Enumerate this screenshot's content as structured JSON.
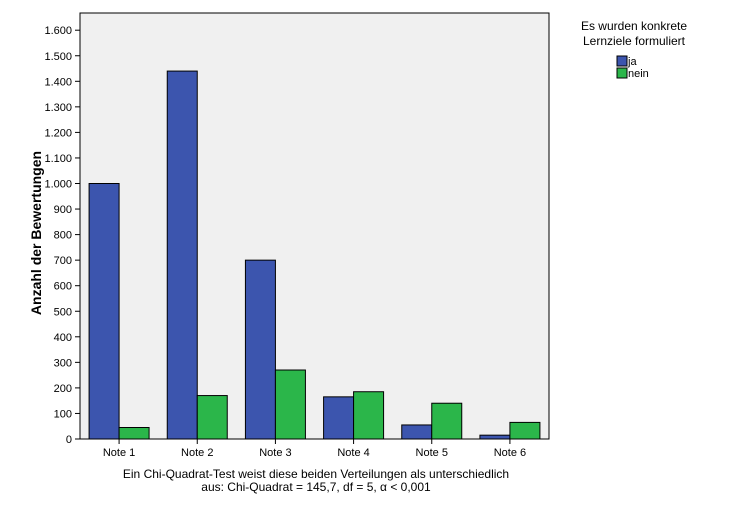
{
  "chart_data": {
    "type": "bar",
    "categories": [
      "Note 1",
      "Note 2",
      "Note 3",
      "Note 4",
      "Note 5",
      "Note 6"
    ],
    "series": [
      {
        "name": "ja",
        "values": [
          1000,
          1440,
          700,
          165,
          55,
          15
        ],
        "color": "#3c55ae"
      },
      {
        "name": "nein",
        "values": [
          45,
          170,
          270,
          185,
          140,
          65
        ],
        "color": "#2bb64a"
      }
    ],
    "ylabel": "Anzahl der Bewertungen",
    "ylim": [
      0,
      1700
    ],
    "yticks": [
      0,
      100,
      200,
      300,
      400,
      500,
      600,
      700,
      800,
      900,
      1000,
      1100,
      1200,
      1300,
      1400,
      1500,
      1600
    ],
    "ytick_labels": [
      "0",
      "100",
      "200",
      "300",
      "400",
      "500",
      "600",
      "700",
      "800",
      "900",
      "1.000",
      "1.100",
      "1.200",
      "1.300",
      "1.400",
      "1.500",
      "1.600"
    ],
    "legend": {
      "title_line1": "Es wurden konkrete",
      "title_line2": "Lernziele formuliert",
      "position": "top-right"
    },
    "grid": false,
    "plot_background": "#f0f0f0",
    "footnote_line1": "Ein Chi-Quadrat-Test weist diese beiden Verteilungen als unterschiedlich",
    "footnote_line2": "aus: Chi-Quadrat = 145,7, df = 5, α < 0,001"
  }
}
